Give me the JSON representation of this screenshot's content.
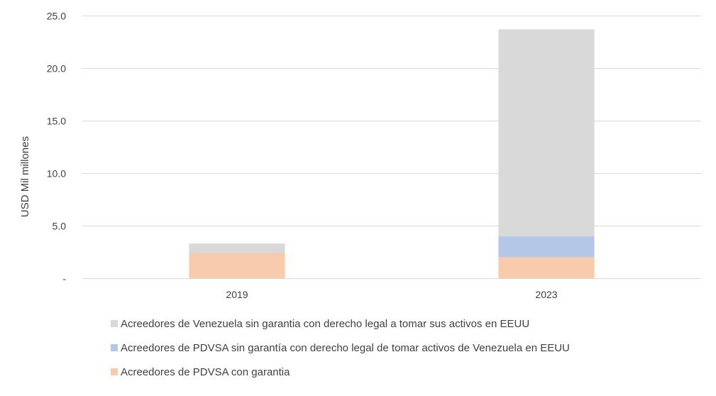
{
  "chart_data": {
    "type": "bar",
    "stacked": true,
    "categories": [
      "2019",
      "2023"
    ],
    "series": [
      {
        "name": "Acreedores de PDVSA con garantia",
        "color": "#f8cbad",
        "values": [
          2.4,
          2.0
        ]
      },
      {
        "name": "Acreedores de PDVSA sin garantía con derecho legal de tomar activos de Venezuela en EEUU",
        "color": "#b4c7e7",
        "values": [
          0.0,
          2.0
        ]
      },
      {
        "name": "Acreedores de Venezuela sin garantia con derecho legal a tomar sus activos en EEUU",
        "color": "#d9d9d9",
        "values": [
          0.9,
          19.7
        ]
      }
    ],
    "ylabel": "USD Mil millones",
    "ylim": [
      0,
      25
    ],
    "yticks": [
      0,
      5,
      10,
      15,
      20,
      25
    ],
    "ytick_labels": [
      "-",
      "5.0",
      "10.0",
      "15.0",
      "20.0",
      "25.0"
    ],
    "legend_order": [
      2,
      1,
      0
    ],
    "legend_position": "bottom",
    "grid": true,
    "gridline_color": "#d9d9d9"
  }
}
